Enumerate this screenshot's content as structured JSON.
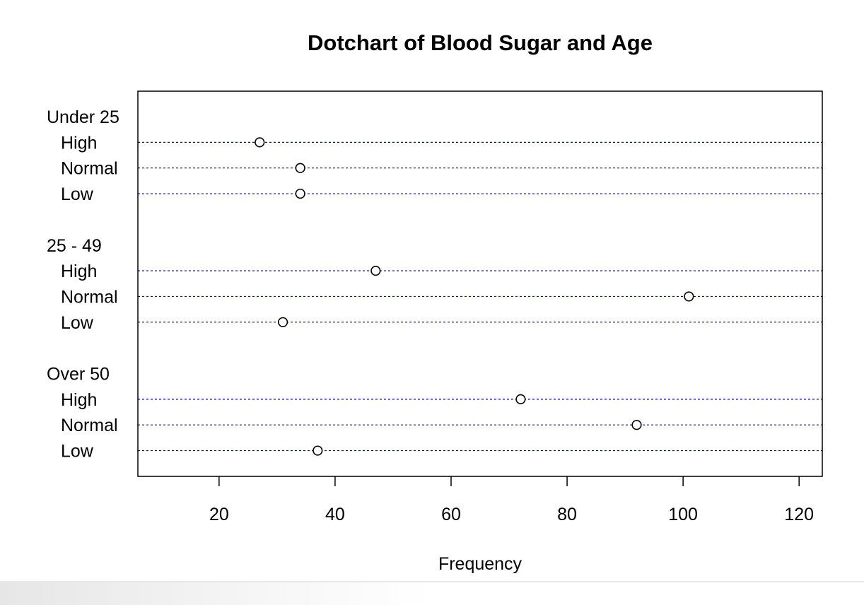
{
  "chart_data": {
    "type": "dotchart",
    "title": "Dotchart of Blood Sugar and Age",
    "xlabel": "Frequency",
    "xlim": [
      6,
      124
    ],
    "xticks": [
      20,
      40,
      60,
      80,
      100,
      120
    ],
    "groups": [
      {
        "name": "Under 25",
        "items": [
          {
            "label": "High",
            "value": 27
          },
          {
            "label": "Normal",
            "value": 34
          },
          {
            "label": "Low",
            "value": 34
          }
        ]
      },
      {
        "name": "25 - 49",
        "items": [
          {
            "label": "High",
            "value": 47
          },
          {
            "label": "Normal",
            "value": 101
          },
          {
            "label": "Low",
            "value": 31
          }
        ]
      },
      {
        "name": "Over 50",
        "items": [
          {
            "label": "High",
            "value": 72
          },
          {
            "label": "Normal",
            "value": 92
          },
          {
            "label": "Low",
            "value": 37
          }
        ]
      }
    ],
    "guide_line_color": "#0000ff",
    "point_style": "open-circle"
  }
}
